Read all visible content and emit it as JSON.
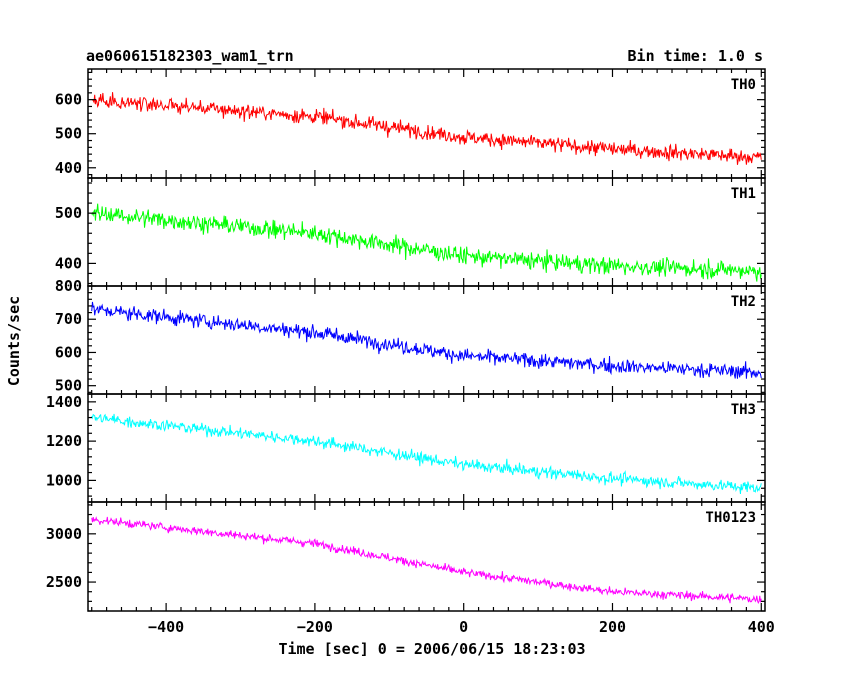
{
  "header": {
    "title": "ae060615182303_wam1_trn",
    "bin_time": "Bin time: 1.0 s"
  },
  "chart_data": {
    "type": "line",
    "title": "ae060615182303_wam1_trn",
    "subtitle": "Bin time: 1.0 s",
    "xlabel": "Time [sec] 0 = 2006/06/15 18:23:03",
    "ylabel": "Counts/sec",
    "xlim": [
      -505,
      405
    ],
    "x_ticks": [
      -400,
      -200,
      0,
      200,
      400
    ],
    "x_data_range": [
      -500,
      400
    ],
    "bin_time": 1.0,
    "panels": [
      {
        "name": "TH0",
        "color": "#ff0000",
        "ylim": [
          370,
          690
        ],
        "y_ticks": [
          400,
          500,
          600
        ],
        "trend": [
          {
            "x": -500,
            "y": 600
          },
          {
            "x": -200,
            "y": 550
          },
          {
            "x": 0,
            "y": 490
          },
          {
            "x": 200,
            "y": 455
          },
          {
            "x": 400,
            "y": 430
          }
        ],
        "noise_sigma": 28
      },
      {
        "name": "TH1",
        "color": "#00ff00",
        "ylim": [
          355,
          570
        ],
        "y_ticks": [
          400,
          500
        ],
        "trend": [
          {
            "x": -500,
            "y": 500
          },
          {
            "x": -200,
            "y": 460
          },
          {
            "x": 0,
            "y": 415
          },
          {
            "x": 200,
            "y": 395
          },
          {
            "x": 400,
            "y": 385
          }
        ],
        "noise_sigma": 22
      },
      {
        "name": "TH2",
        "color": "#0000ff",
        "ylim": [
          475,
          800
        ],
        "y_ticks": [
          500,
          600,
          700,
          800
        ],
        "trend": [
          {
            "x": -500,
            "y": 730
          },
          {
            "x": -200,
            "y": 660
          },
          {
            "x": 0,
            "y": 590
          },
          {
            "x": 200,
            "y": 560
          },
          {
            "x": 400,
            "y": 540
          }
        ],
        "noise_sigma": 28
      },
      {
        "name": "TH3",
        "color": "#00ffff",
        "ylim": [
          890,
          1440
        ],
        "y_ticks": [
          1000,
          1200,
          1400
        ],
        "trend": [
          {
            "x": -500,
            "y": 1320
          },
          {
            "x": -200,
            "y": 1200
          },
          {
            "x": 0,
            "y": 1080
          },
          {
            "x": 200,
            "y": 1010
          },
          {
            "x": 400,
            "y": 960
          }
        ],
        "noise_sigma": 38
      },
      {
        "name": "TH0123",
        "color": "#ff00ff",
        "ylim": [
          2200,
          3330
        ],
        "y_ticks": [
          2500,
          3000
        ],
        "trend": [
          {
            "x": -500,
            "y": 3150
          },
          {
            "x": -200,
            "y": 2900
          },
          {
            "x": 0,
            "y": 2600
          },
          {
            "x": 200,
            "y": 2400
          },
          {
            "x": 400,
            "y": 2320
          }
        ],
        "noise_sigma": 55
      }
    ]
  }
}
